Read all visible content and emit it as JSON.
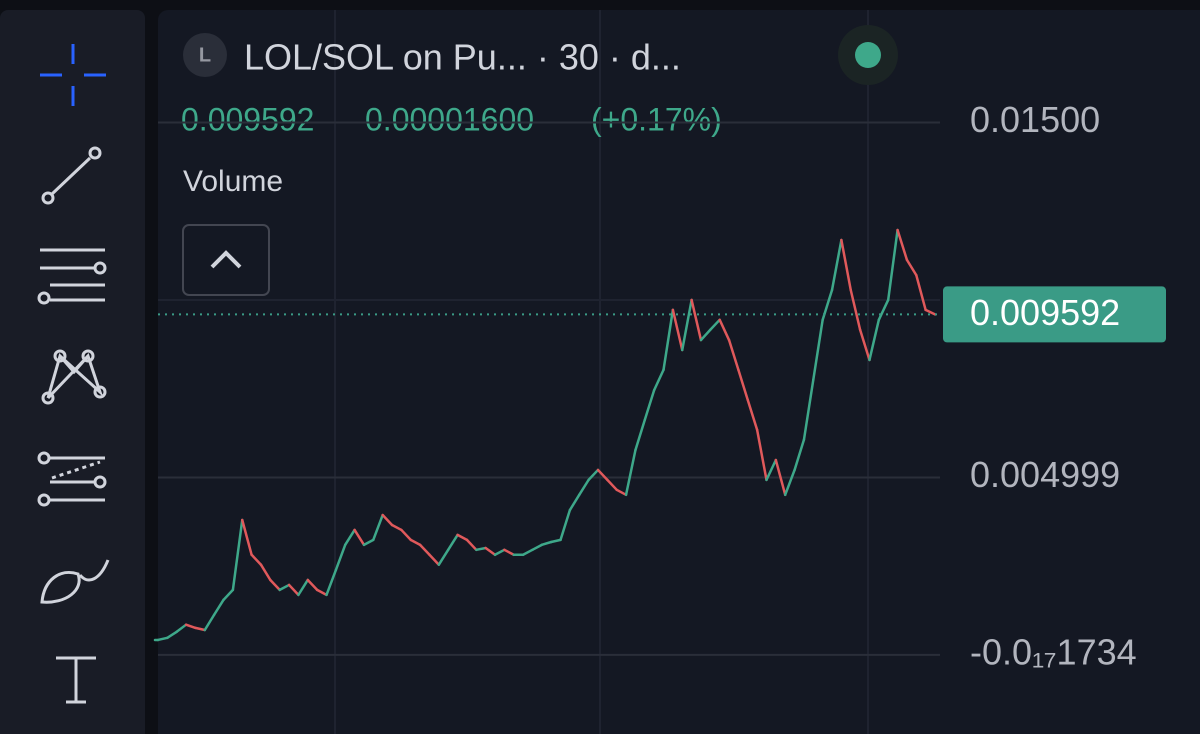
{
  "header": {
    "icon": "L",
    "title": "LOL/SOL on Pu... · 30 · d...",
    "price": "0.009592",
    "change": "0.00001600",
    "change_percent": "(+0.17%)",
    "indicator": "Volume"
  },
  "chart_data": {
    "type": "line",
    "values": [
      0.00042,
      0.00048,
      0.00065,
      0.00085,
      0.00076,
      0.0007,
      0.00113,
      0.00155,
      0.00183,
      0.0038,
      0.00282,
      0.00254,
      0.00211,
      0.00183,
      0.00197,
      0.00169,
      0.00211,
      0.00183,
      0.00169,
      0.00239,
      0.0031,
      0.00352,
      0.0031,
      0.00324,
      0.00394,
      0.00366,
      0.00352,
      0.00324,
      0.0031,
      0.00282,
      0.00254,
      0.00296,
      0.00338,
      0.00324,
      0.00296,
      0.00301,
      0.00282,
      0.00296,
      0.00282,
      0.00282,
      0.00296,
      0.0031,
      0.00318,
      0.00324,
      0.00408,
      0.00451,
      0.00493,
      0.00521,
      0.00493,
      0.00465,
      0.00451,
      0.00577,
      0.00662,
      0.00746,
      0.00803,
      0.00972,
      0.00859,
      0.01,
      0.00887,
      0.00916,
      0.00944,
      0.00887,
      0.00803,
      0.00718,
      0.00634,
      0.00493,
      0.00549,
      0.00451,
      0.00521,
      0.00606,
      0.00775,
      0.00944,
      0.01028,
      0.01169,
      0.01028,
      0.00916,
      0.00831,
      0.00944,
      0.01,
      0.01197,
      0.01113,
      0.0107,
      0.00972,
      0.009592
    ],
    "up_color": "#3ea88a",
    "down_color": "#e0595b",
    "ylim": [
      -0.00223,
      0.01817
    ],
    "yticks": [
      {
        "value": 0.015,
        "label": "0.01500"
      },
      0.004999,
      {
        "value": -1.734e-18,
        "label": "-0.0₁₇1734"
      }
    ],
    "grid": true,
    "last_value": 0.009592,
    "last_value_color": "#3a9b86"
  }
}
